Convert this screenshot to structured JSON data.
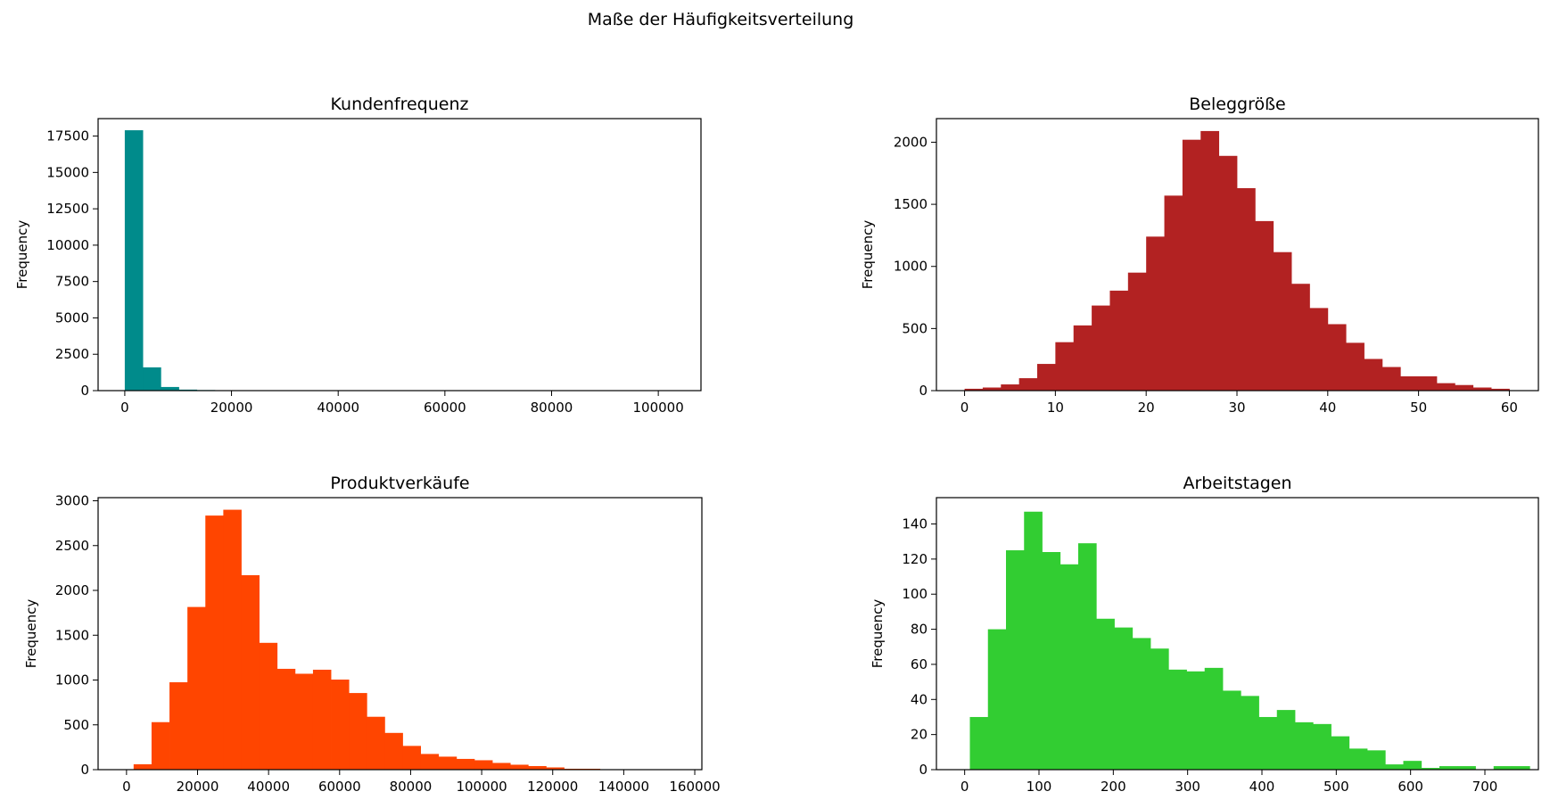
{
  "figure": {
    "suptitle": "Maße der Häufigkeitsverteilung"
  },
  "chart_data": [
    {
      "type": "bar",
      "title": "Kundenfrequenz",
      "xlabel": "",
      "ylabel": "Frequency",
      "color": "#008b8b",
      "xlim": [
        -5000,
        108000
      ],
      "ylim": [
        0,
        18700
      ],
      "xticks": [
        0,
        20000,
        40000,
        60000,
        80000,
        100000
      ],
      "xtick_labels": [
        "0",
        "20000",
        "40000",
        "60000",
        "80000",
        "100000"
      ],
      "yticks": [
        0,
        2500,
        5000,
        7500,
        10000,
        12500,
        15000,
        17500
      ],
      "ytick_labels": [
        "0",
        "2500",
        "5000",
        "7500",
        "10000",
        "12500",
        "15000",
        "17500"
      ],
      "bin_start": 0,
      "bin_width": 3375,
      "values": [
        17900,
        1600,
        250,
        70,
        40,
        30,
        25,
        20,
        0,
        0,
        0,
        0,
        0,
        0,
        0,
        0,
        0,
        0,
        0,
        0,
        0,
        0,
        0,
        0,
        0,
        0,
        0,
        0,
        0,
        0
      ]
    },
    {
      "type": "bar",
      "title": "Beleggröße",
      "xlabel": "",
      "ylabel": "Frequency",
      "color": "#b22222",
      "xlim": [
        -3.1,
        63.2
      ],
      "ylim": [
        0,
        2190
      ],
      "xticks": [
        0,
        10,
        20,
        30,
        40,
        50,
        60
      ],
      "xtick_labels": [
        "0",
        "10",
        "20",
        "30",
        "40",
        "50",
        "60"
      ],
      "yticks": [
        0,
        500,
        1000,
        1500,
        2000
      ],
      "ytick_labels": [
        "0",
        "500",
        "1000",
        "1500",
        "2000"
      ],
      "bin_start": 0,
      "bin_width": 2,
      "values": [
        15,
        25,
        50,
        100,
        215,
        390,
        525,
        685,
        805,
        950,
        1240,
        1570,
        2020,
        2090,
        1890,
        1630,
        1365,
        1115,
        860,
        665,
        535,
        385,
        255,
        190,
        115,
        115,
        60,
        45,
        25,
        15
      ]
    },
    {
      "type": "bar",
      "title": "Produktverkäufe",
      "xlabel": "",
      "ylabel": "Frequency",
      "color": "#ff4500",
      "xlim": [
        -8000,
        162000
      ],
      "ylim": [
        0,
        3035
      ],
      "xticks": [
        0,
        20000,
        40000,
        60000,
        80000,
        100000,
        120000,
        140000,
        160000
      ],
      "xtick_labels": [
        "0",
        "20000",
        "40000",
        "60000",
        "80000",
        "100000",
        "120000",
        "140000",
        "160000"
      ],
      "yticks": [
        0,
        500,
        1000,
        1500,
        2000,
        2500,
        3000
      ],
      "ytick_labels": [
        "0",
        "500",
        "1000",
        "1500",
        "2000",
        "2500",
        "3000"
      ],
      "bin_start": 2000,
      "bin_width": 5050,
      "values": [
        60,
        530,
        975,
        1815,
        2835,
        2900,
        2170,
        1415,
        1125,
        1070,
        1115,
        1005,
        855,
        590,
        410,
        265,
        175,
        145,
        120,
        105,
        75,
        55,
        40,
        25,
        10,
        10,
        5,
        5,
        0,
        0
      ]
    },
    {
      "type": "bar",
      "title": "Arbeitstagen",
      "xlabel": "",
      "ylabel": "Frequency",
      "color": "#32cd32",
      "xlim": [
        -38,
        772
      ],
      "ylim": [
        0,
        155
      ],
      "xticks": [
        0,
        100,
        200,
        300,
        400,
        500,
        600,
        700
      ],
      "xtick_labels": [
        "0",
        "100",
        "200",
        "300",
        "400",
        "500",
        "600",
        "700"
      ],
      "yticks": [
        0,
        20,
        40,
        60,
        80,
        100,
        120,
        140
      ],
      "ytick_labels": [
        "0",
        "20",
        "40",
        "60",
        "80",
        "100",
        "120",
        "140"
      ],
      "bin_start": 7,
      "bin_width": 24.3,
      "values": [
        30,
        80,
        125,
        147,
        124,
        117,
        129,
        86,
        81,
        75,
        69,
        57,
        56,
        58,
        45,
        42,
        30,
        34,
        27,
        26,
        19,
        12,
        11,
        3,
        5,
        1,
        2,
        2,
        0,
        2,
        2
      ]
    }
  ]
}
